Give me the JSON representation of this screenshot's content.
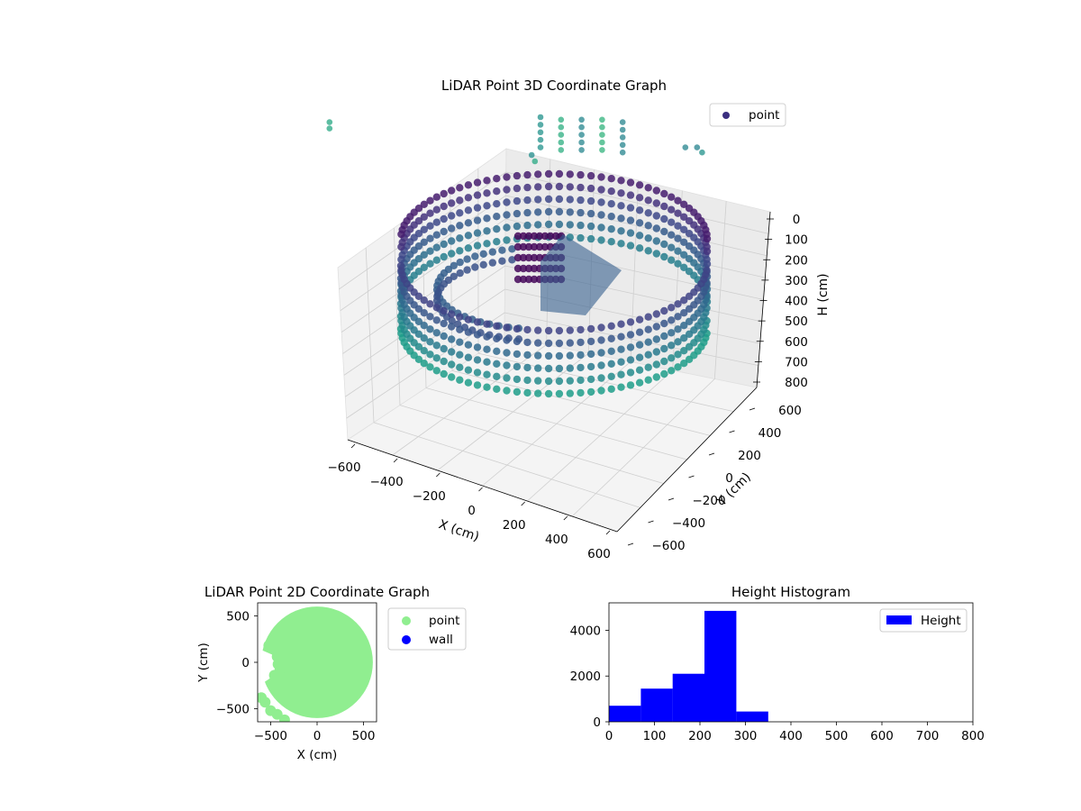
{
  "chart_data": [
    {
      "type": "scatter",
      "subtype": "3d-scatter",
      "title": "LiDAR Point 3D Coordinate Graph",
      "xlabel": "X (cm)",
      "ylabel": "Y (cm)",
      "zlabel": "H (cm)",
      "xlim": [
        -600,
        600
      ],
      "ylim": [
        -600,
        600
      ],
      "zlim": [
        0,
        800
      ],
      "z_inverted": true,
      "x_ticks": [
        "−600",
        "−400",
        "−200",
        "0",
        "200",
        "400",
        "600"
      ],
      "y_ticks": [
        "−600",
        "−400",
        "−200",
        "0",
        "200",
        "400",
        "600"
      ],
      "z_ticks": [
        "0",
        "100",
        "200",
        "300",
        "400",
        "500",
        "600",
        "700",
        "800"
      ],
      "legend": {
        "entries": [
          "point"
        ],
        "placement": "top-right"
      },
      "colormap": "viridis",
      "grid": true,
      "series": [
        {
          "name": "point",
          "marker_color": "#3b2f80",
          "wall_radius": 560,
          "wall_height": [
            200,
            300
          ],
          "inner_ring_radius": 380,
          "outlier_points": [
            {
              "x": -210,
              "y": 420,
              "h": 0
            },
            {
              "x": -210,
              "y": 420,
              "h": 30
            },
            {
              "x": -210,
              "y": 420,
              "h": 60
            },
            {
              "x": -210,
              "y": 420,
              "h": 90
            },
            {
              "x": -210,
              "y": 420,
              "h": 120
            },
            {
              "x": -150,
              "y": 420,
              "h": 10
            },
            {
              "x": -150,
              "y": 420,
              "h": 40
            },
            {
              "x": -150,
              "y": 420,
              "h": 70
            },
            {
              "x": -150,
              "y": 420,
              "h": 100
            },
            {
              "x": -150,
              "y": 420,
              "h": 130
            },
            {
              "x": -90,
              "y": 420,
              "h": 10
            },
            {
              "x": -90,
              "y": 420,
              "h": 40
            },
            {
              "x": -90,
              "y": 420,
              "h": 70
            },
            {
              "x": -90,
              "y": 420,
              "h": 100
            },
            {
              "x": -90,
              "y": 420,
              "h": 130
            },
            {
              "x": -30,
              "y": 420,
              "h": 10
            },
            {
              "x": -30,
              "y": 420,
              "h": 40
            },
            {
              "x": -30,
              "y": 420,
              "h": 70
            },
            {
              "x": -30,
              "y": 420,
              "h": 100
            },
            {
              "x": -30,
              "y": 420,
              "h": 130
            },
            {
              "x": 30,
              "y": 420,
              "h": 20
            },
            {
              "x": 30,
              "y": 420,
              "h": 50
            },
            {
              "x": 30,
              "y": 420,
              "h": 80
            },
            {
              "x": 30,
              "y": 420,
              "h": 110
            },
            {
              "x": 30,
              "y": 420,
              "h": 140
            },
            {
              "x": 250,
              "y": 350,
              "h": 120
            },
            {
              "x": 300,
              "y": 320,
              "h": 120
            },
            {
              "x": 320,
              "y": 310,
              "h": 140
            },
            {
              "x": -500,
              "y": -200,
              "h": 20
            },
            {
              "x": -500,
              "y": -200,
              "h": 45
            },
            {
              "x": -120,
              "y": 200,
              "h": 150
            },
            {
              "x": -100,
              "y": 180,
              "h": 175
            }
          ]
        }
      ]
    },
    {
      "type": "scatter",
      "title": "LiDAR Point 2D Coordinate Graph",
      "xlabel": "X (cm)",
      "ylabel": "Y (cm)",
      "xlim": [
        -640,
        640
      ],
      "ylim": [
        -640,
        640
      ],
      "x_ticks": [
        "−500",
        "0",
        "500"
      ],
      "y_ticks": [
        "500",
        "0",
        "−500"
      ],
      "legend": {
        "entries": [
          "point",
          "wall"
        ],
        "placement": "outside-right"
      },
      "series": [
        {
          "name": "point",
          "color": "#90ee90",
          "extent_radius": 600
        },
        {
          "name": "wall",
          "color": "#0000ff"
        }
      ]
    },
    {
      "type": "bar",
      "subtype": "histogram",
      "title": "Height Histogram",
      "xlim": [
        0,
        800
      ],
      "ylim": [
        0,
        5200
      ],
      "x_ticks": [
        "0",
        "100",
        "200",
        "300",
        "400",
        "500",
        "600",
        "700",
        "800"
      ],
      "y_ticks": [
        "0",
        "2000",
        "4000"
      ],
      "legend": {
        "entries": [
          "Height"
        ],
        "placement": "top-right"
      },
      "series": [
        {
          "name": "Height",
          "color": "#0000ff",
          "bins": [
            {
              "start": 0,
              "end": 70,
              "count": 700
            },
            {
              "start": 70,
              "end": 140,
              "count": 1450
            },
            {
              "start": 140,
              "end": 210,
              "count": 2100
            },
            {
              "start": 210,
              "end": 280,
              "count": 4850
            },
            {
              "start": 280,
              "end": 350,
              "count": 450
            }
          ]
        }
      ]
    }
  ]
}
